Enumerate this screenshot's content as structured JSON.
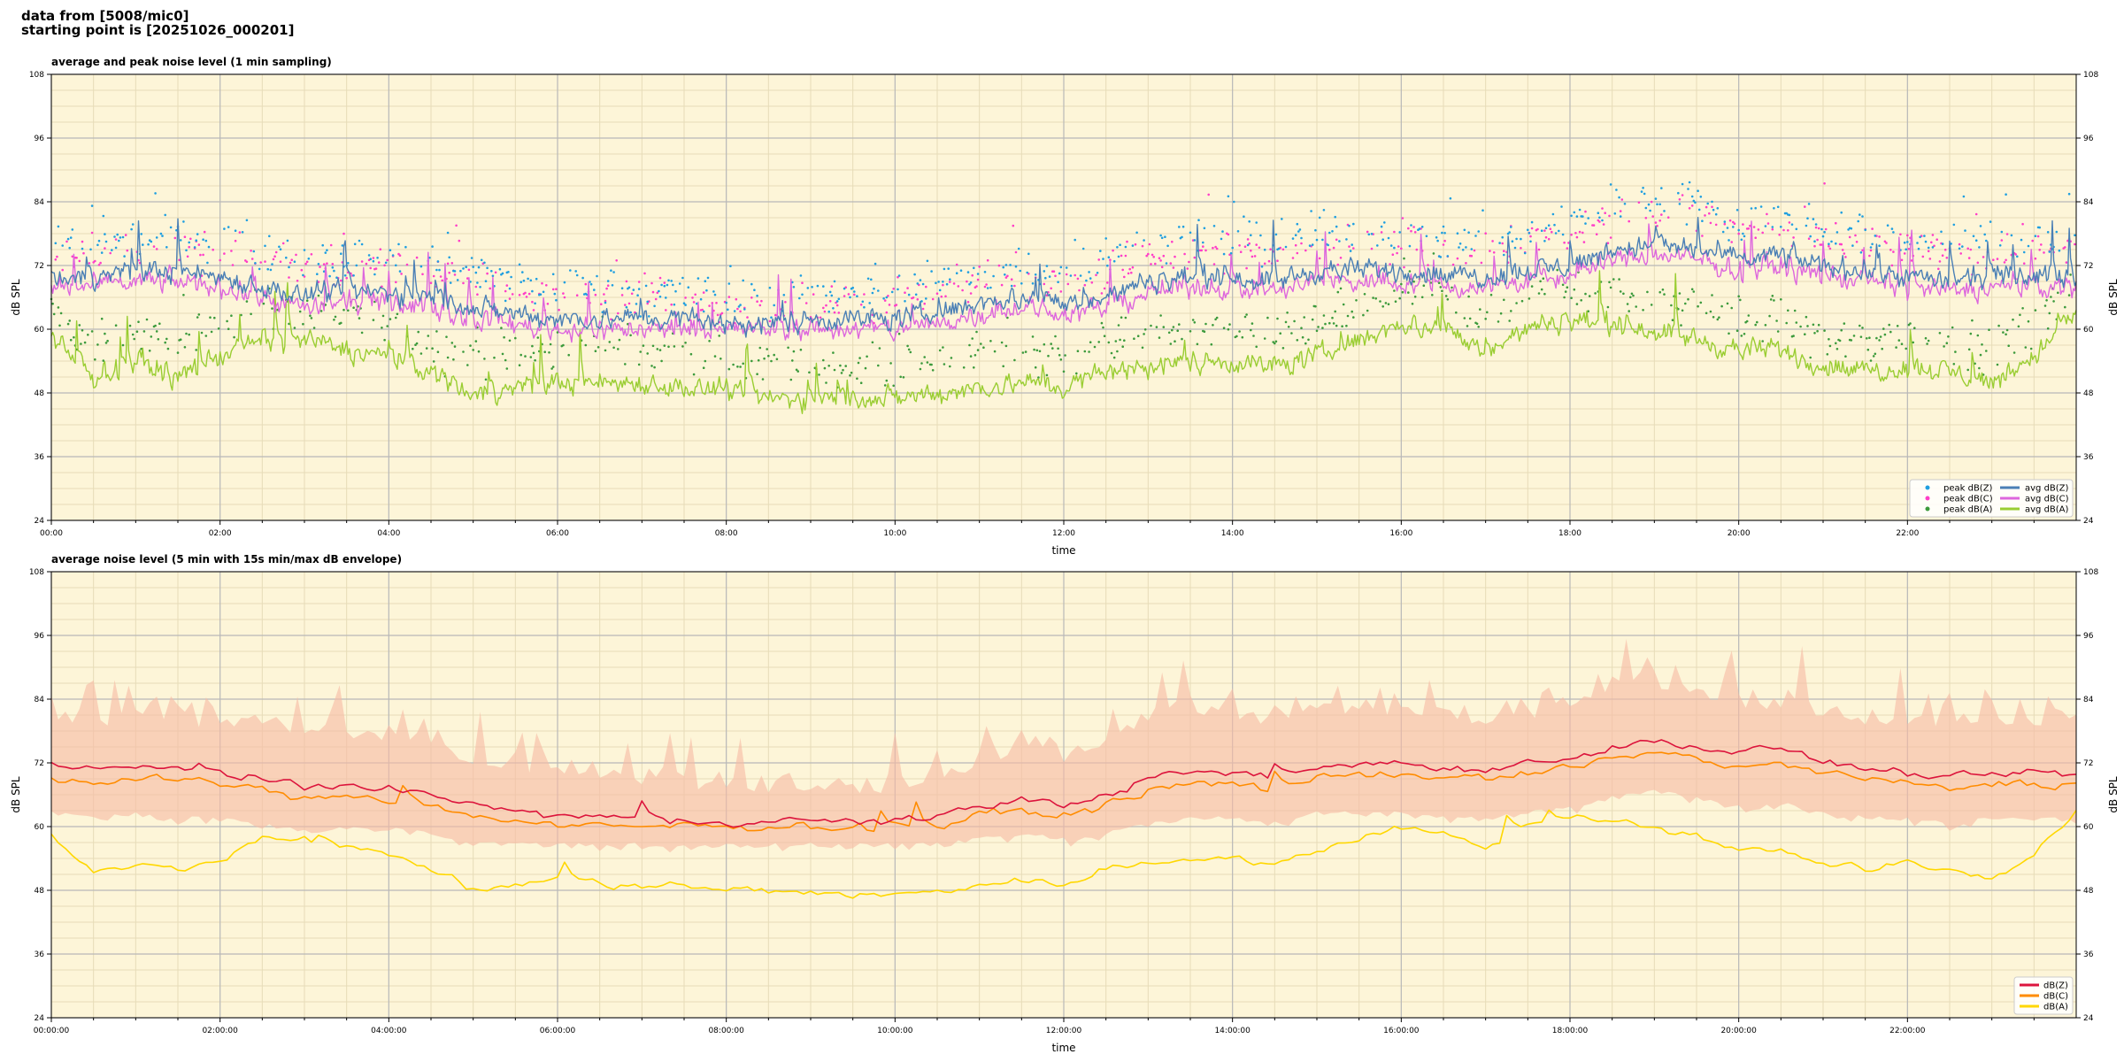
{
  "header": {
    "line1": "data from [5008/mic0]",
    "line2": "starting point is [20251026_000201]"
  },
  "colors": {
    "plot_bg": "#fdf5d8",
    "peak_z": "#1f9fe0",
    "peak_c": "#ff3ec8",
    "peak_a": "#3c9a3c",
    "avg_z": "#4a7fb5",
    "avg_c": "#dd66dd",
    "avg_a": "#9acd32",
    "db_z": "#dc143c",
    "db_c": "#ff8c00",
    "db_a": "#ffd700",
    "envelope": "#f6b9a4"
  },
  "chart_data": [
    {
      "type": "line",
      "title": "average and peak noise level (1 min sampling)",
      "xlabel": "time",
      "ylabel": "dB SPL",
      "ylabel_right": "dB SPL",
      "ylim": [
        24,
        108
      ],
      "xlim_hours": [
        0,
        24
      ],
      "yticks": [
        "24",
        "36",
        "48",
        "60",
        "72",
        "84",
        "96",
        "108"
      ],
      "xticks": [
        "00:00",
        "02:00",
        "04:00",
        "06:00",
        "08:00",
        "10:00",
        "12:00",
        "14:00",
        "16:00",
        "18:00",
        "20:00",
        "22:00"
      ],
      "grid": true,
      "legend_position": "bottom-right",
      "legend": [
        "peak dB(Z)",
        "peak dB(C)",
        "peak dB(A)",
        "avg dB(Z)",
        "avg dB(C)",
        "avg dB(A)"
      ],
      "x_hours": [
        0,
        0.5,
        1,
        1.5,
        2,
        2.5,
        3,
        3.5,
        4,
        4.5,
        5,
        5.5,
        6,
        6.5,
        7,
        7.5,
        8,
        8.5,
        9,
        9.5,
        10,
        10.5,
        11,
        11.5,
        12,
        12.5,
        13,
        13.5,
        14,
        14.5,
        15,
        15.5,
        16,
        16.5,
        17,
        17.5,
        18,
        18.5,
        19,
        19.5,
        20,
        20.5,
        21,
        21.5,
        22,
        22.5,
        23,
        23.5,
        24
      ],
      "series": [
        {
          "name": "avg dB(Z)",
          "values": [
            70,
            70,
            71,
            71,
            70,
            68,
            66,
            67,
            67,
            66,
            64,
            63,
            62,
            62,
            62,
            62,
            61,
            61,
            62,
            62,
            62,
            63,
            65,
            66,
            65,
            66,
            69,
            70,
            70,
            69,
            71,
            71,
            71,
            70,
            70,
            71,
            72,
            75,
            76,
            75,
            73,
            74,
            72,
            71,
            70,
            69,
            70,
            70,
            70
          ]
        },
        {
          "name": "avg dB(C)",
          "values": [
            68,
            68,
            69,
            69,
            68,
            66,
            64,
            65,
            65,
            64,
            62,
            61,
            60,
            60,
            60,
            60,
            60,
            60,
            60,
            60,
            60,
            61,
            63,
            64,
            63,
            64,
            67,
            68,
            68,
            67,
            69,
            69,
            69,
            68,
            68,
            69,
            70,
            73,
            74,
            73,
            71,
            72,
            70,
            69,
            68,
            67,
            68,
            68,
            68
          ]
        },
        {
          "name": "avg dB(A)",
          "values": [
            58,
            51,
            54,
            51,
            55,
            58,
            58,
            56,
            55,
            52,
            48,
            49,
            50,
            50,
            50,
            49,
            48,
            47,
            47,
            47,
            47,
            48,
            49,
            50,
            49,
            52,
            53,
            54,
            54,
            53,
            55,
            58,
            61,
            60,
            56,
            60,
            62,
            61,
            60,
            58,
            56,
            56,
            53,
            52,
            53,
            52,
            50,
            55,
            63
          ]
        },
        {
          "name": "peak dB(Z)",
          "values": [
            76,
            76,
            77,
            77,
            77,
            75,
            73,
            73,
            74,
            73,
            71,
            69,
            68,
            68,
            67,
            67,
            66,
            66,
            67,
            67,
            67,
            68,
            71,
            72,
            71,
            73,
            76,
            77,
            77,
            76,
            78,
            78,
            78,
            77,
            77,
            78,
            80,
            83,
            84,
            83,
            80,
            81,
            79,
            78,
            77,
            76,
            77,
            77,
            77
          ]
        },
        {
          "name": "peak dB(C)",
          "values": [
            74,
            74,
            75,
            75,
            75,
            73,
            71,
            71,
            72,
            71,
            69,
            67,
            66,
            66,
            65,
            65,
            64,
            64,
            65,
            65,
            65,
            66,
            69,
            70,
            69,
            71,
            74,
            75,
            75,
            74,
            76,
            76,
            76,
            75,
            75,
            76,
            78,
            81,
            82,
            81,
            78,
            79,
            77,
            76,
            75,
            74,
            75,
            75,
            75
          ]
        },
        {
          "name": "peak dB(A)",
          "values": [
            64,
            57,
            60,
            57,
            61,
            64,
            64,
            62,
            61,
            58,
            54,
            55,
            56,
            56,
            56,
            55,
            54,
            53,
            53,
            53,
            53,
            54,
            55,
            56,
            55,
            58,
            59,
            60,
            60,
            59,
            61,
            64,
            67,
            66,
            62,
            66,
            68,
            67,
            66,
            64,
            62,
            62,
            59,
            58,
            59,
            58,
            56,
            61,
            69
          ]
        }
      ]
    },
    {
      "type": "line",
      "title": "average noise level (5 min with 15s min/max dB envelope)",
      "xlabel": "time",
      "ylabel": "dB SPL",
      "ylabel_right": "dB SPL",
      "ylim": [
        24,
        108
      ],
      "xlim_hours": [
        0,
        24
      ],
      "yticks": [
        "24",
        "36",
        "48",
        "60",
        "72",
        "84",
        "96",
        "108"
      ],
      "xticks": [
        "00:00:00",
        "02:00:00",
        "04:00:00",
        "06:00:00",
        "08:00:00",
        "10:00:00",
        "12:00:00",
        "14:00:00",
        "16:00:00",
        "18:00:00",
        "20:00:00",
        "22:00:00"
      ],
      "grid": true,
      "legend_position": "bottom-right",
      "legend": [
        "dB(Z)",
        "dB(C)",
        "dB(A)"
      ],
      "x_hours": [
        0,
        0.5,
        1,
        1.5,
        2,
        2.5,
        3,
        3.5,
        4,
        4.5,
        5,
        5.5,
        6,
        6.5,
        7,
        7.5,
        8,
        8.5,
        9,
        9.5,
        10,
        10.5,
        11,
        11.5,
        12,
        12.5,
        13,
        13.5,
        14,
        14.5,
        15,
        15.5,
        16,
        16.5,
        17,
        17.5,
        18,
        18.5,
        19,
        19.5,
        20,
        20.5,
        21,
        21.5,
        22,
        22.5,
        23,
        23.5,
        24
      ],
      "series": [
        {
          "name": "dB(Z)",
          "values": [
            72,
            71,
            71,
            71,
            70,
            69,
            67,
            68,
            67,
            66,
            64,
            63,
            62,
            62,
            61,
            61,
            61,
            61,
            61,
            61,
            61,
            62,
            64,
            65,
            64,
            66,
            69,
            70,
            70,
            69,
            71,
            72,
            72,
            71,
            71,
            72,
            73,
            75,
            76,
            75,
            74,
            75,
            72,
            71,
            70,
            69,
            70,
            70,
            70
          ]
        },
        {
          "name": "dB(C)",
          "values": [
            69,
            68,
            69,
            69,
            68,
            67,
            65,
            66,
            65,
            64,
            62,
            61,
            60,
            60,
            60,
            60,
            60,
            60,
            60,
            60,
            60,
            60,
            62,
            63,
            62,
            64,
            67,
            68,
            68,
            67,
            69,
            70,
            70,
            69,
            69,
            70,
            71,
            73,
            74,
            73,
            71,
            72,
            70,
            69,
            68,
            67,
            68,
            68,
            68
          ]
        },
        {
          "name": "dB(A)",
          "values": [
            58,
            51,
            53,
            52,
            54,
            58,
            58,
            56,
            55,
            52,
            48,
            49,
            50,
            49,
            49,
            49,
            48,
            48,
            48,
            47,
            47,
            48,
            49,
            50,
            49,
            52,
            53,
            54,
            54,
            53,
            55,
            58,
            60,
            59,
            56,
            60,
            62,
            61,
            60,
            58,
            56,
            56,
            53,
            52,
            53,
            52,
            50,
            55,
            63
          ]
        },
        {
          "name": "envelope max",
          "values": [
            80,
            78,
            79,
            79,
            78,
            78,
            76,
            76,
            76,
            74,
            71,
            70,
            69,
            68,
            67,
            67,
            66,
            66,
            66,
            66,
            66,
            67,
            70,
            73,
            72,
            75,
            79,
            80,
            80,
            79,
            80,
            81,
            81,
            80,
            79,
            80,
            82,
            85,
            86,
            84,
            81,
            81,
            80,
            79,
            79,
            78,
            79,
            79,
            79
          ]
        },
        {
          "name": "envelope min",
          "values": [
            63,
            62,
            63,
            62,
            62,
            61,
            60,
            60,
            60,
            59,
            58,
            57,
            57,
            57,
            57,
            57,
            57,
            57,
            57,
            57,
            57,
            57,
            58,
            59,
            58,
            59,
            61,
            62,
            62,
            61,
            63,
            63,
            63,
            62,
            62,
            63,
            64,
            66,
            67,
            66,
            64,
            65,
            63,
            62,
            62,
            61,
            62,
            62,
            62
          ]
        }
      ]
    }
  ]
}
